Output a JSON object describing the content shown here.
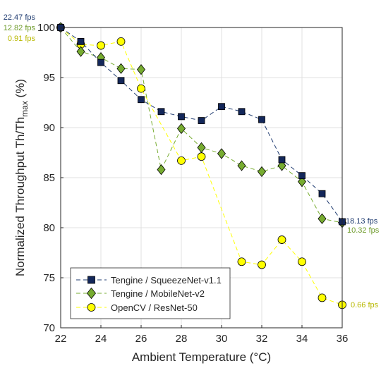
{
  "chart_data": {
    "type": "line",
    "xlabel": "Ambient Temperature (°C)",
    "ylabel_prefix": "Normalized Throughput    Th/Th",
    "ylabel_sub": "max",
    "ylabel_suffix": "  (%)",
    "xlim": [
      22,
      36
    ],
    "ylim": [
      70,
      100
    ],
    "xticks": [
      22,
      24,
      26,
      28,
      30,
      32,
      34,
      36
    ],
    "yticks": [
      70,
      75,
      80,
      85,
      90,
      95,
      100
    ],
    "grid": true,
    "legend_position": "bottom-left",
    "series": [
      {
        "name": "Tengine / SqueezeNet-v1.1",
        "marker": "square",
        "color": "#1f3b70",
        "marker_fill": "#13275a",
        "x": [
          22,
          23,
          24,
          25,
          26,
          27,
          28,
          29,
          30,
          31,
          32,
          33,
          34,
          35,
          36
        ],
        "y": [
          100,
          98.6,
          96.5,
          94.7,
          92.8,
          91.6,
          91.1,
          90.7,
          92.1,
          91.6,
          90.8,
          86.8,
          85.2,
          83.4,
          80.6
        ],
        "start_label": "22.47 fps",
        "end_label": "18.13 fps"
      },
      {
        "name": "Tengine / MobileNet-v2",
        "marker": "diamond",
        "color": "#77ac30",
        "marker_fill": "#77ac30",
        "x": [
          22,
          23,
          24,
          25,
          26,
          27,
          28,
          29,
          30,
          31,
          32,
          33,
          34,
          35,
          36
        ],
        "y": [
          100,
          97.6,
          97.0,
          95.9,
          95.8,
          85.8,
          89.9,
          88.0,
          87.4,
          86.2,
          85.6,
          86.2,
          84.6,
          80.9,
          80.5
        ],
        "start_label": "12.82 fps",
        "end_label": "10.32 fps"
      },
      {
        "name": "OpenCV / ResNet-50",
        "marker": "circle",
        "color": "#ffff00",
        "marker_fill": "#ffff00",
        "x": [
          22,
          23,
          24,
          25,
          26,
          28,
          29,
          31,
          32,
          33,
          34,
          35,
          36
        ],
        "y": [
          100,
          98.3,
          98.2,
          98.6,
          93.9,
          86.7,
          87.1,
          76.6,
          76.3,
          78.8,
          76.6,
          73.0,
          72.3
        ],
        "start_label": "0.91 fps",
        "end_label": "0.66 fps"
      }
    ],
    "label_colors": {
      "squeezenet": "#1f3b70",
      "mobilenet": "#6e9b2a",
      "resnet": "#b8b800"
    }
  }
}
